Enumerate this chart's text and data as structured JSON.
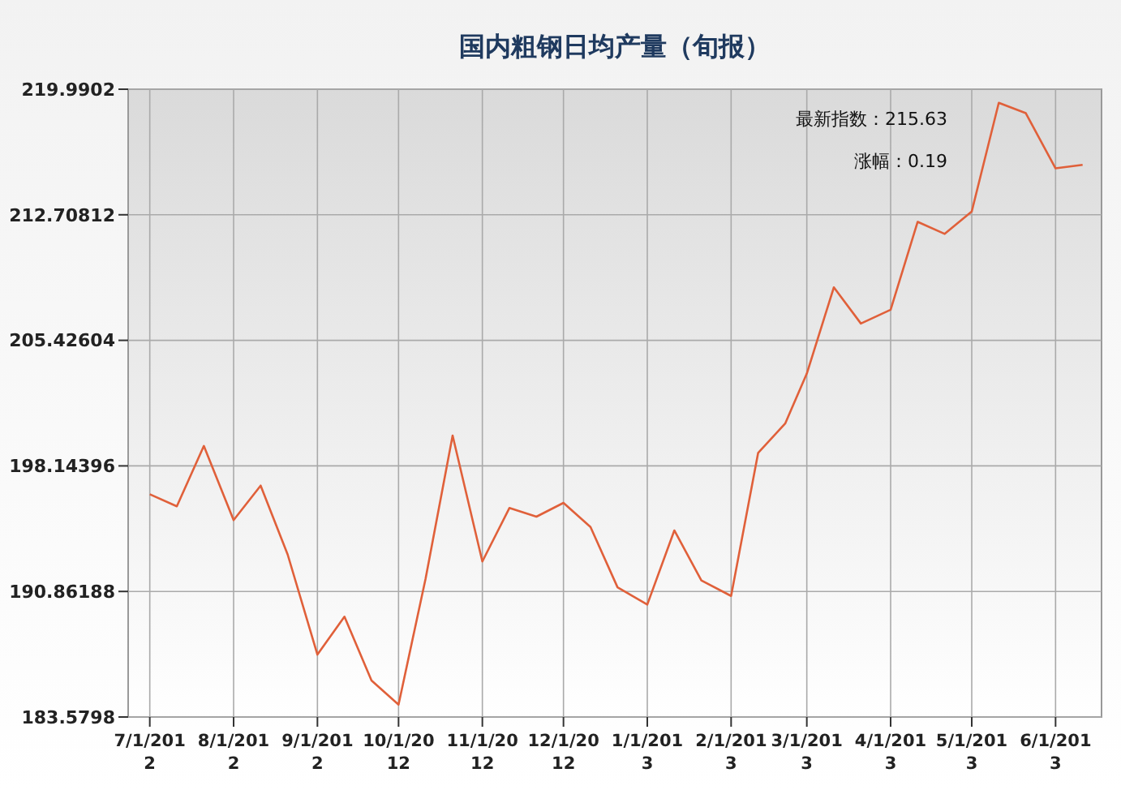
{
  "chart_data": {
    "type": "line",
    "title": "国内粗钢日均产量（旬报）",
    "x": [
      "2012-07-01",
      "2012-07-11",
      "2012-07-21",
      "2012-08-01",
      "2012-08-11",
      "2012-08-21",
      "2012-09-01",
      "2012-09-11",
      "2012-09-21",
      "2012-10-01",
      "2012-10-11",
      "2012-10-21",
      "2012-11-01",
      "2012-11-11",
      "2012-11-21",
      "2012-12-01",
      "2012-12-11",
      "2012-12-21",
      "2013-01-01",
      "2013-01-11",
      "2013-01-21",
      "2013-02-01",
      "2013-02-11",
      "2013-02-21",
      "2013-03-01",
      "2013-03-11",
      "2013-03-21",
      "2013-04-01",
      "2013-04-11",
      "2013-04-21",
      "2013-05-01",
      "2013-05-11",
      "2013-05-21",
      "2013-06-01",
      "2013-06-11"
    ],
    "series": [
      {
        "color": "#e0603a",
        "values": [
          196.5,
          195.8,
          199.3,
          195.0,
          197.0,
          193.0,
          187.2,
          189.4,
          185.7,
          184.3,
          191.6,
          199.9,
          192.6,
          195.7,
          195.2,
          196.0,
          194.6,
          191.1,
          190.1,
          194.4,
          191.5,
          190.6,
          198.9,
          200.6,
          203.5,
          208.5,
          206.4,
          207.2,
          212.3,
          211.6,
          212.9,
          219.2,
          218.6,
          215.4,
          215.6
        ]
      }
    ],
    "xlim": [
      "2012-06-23",
      "2013-06-18"
    ],
    "xticks": [
      {
        "value": "2012-07-01",
        "label": "7/1/2012"
      },
      {
        "value": "2012-08-01",
        "label": "8/1/2012"
      },
      {
        "value": "2012-09-01",
        "label": "9/1/2012"
      },
      {
        "value": "2012-10-01",
        "label": "10/1/2012"
      },
      {
        "value": "2012-11-01",
        "label": "11/1/2012"
      },
      {
        "value": "2012-12-01",
        "label": "12/1/2012"
      },
      {
        "value": "2013-01-01",
        "label": "1/1/2013"
      },
      {
        "value": "2013-02-01",
        "label": "2/1/2013"
      },
      {
        "value": "2013-03-01",
        "label": "3/1/2013"
      },
      {
        "value": "2013-04-01",
        "label": "4/1/2013"
      },
      {
        "value": "2013-05-01",
        "label": "5/1/2013"
      },
      {
        "value": "2013-06-01",
        "label": "6/1/2013"
      }
    ],
    "ylim": [
      183.5798,
      219.9902
    ],
    "yticks": [
      183.5798,
      190.86188,
      198.14396,
      205.42604,
      212.70812,
      219.9902
    ],
    "grid": true,
    "marker": "none",
    "line_style": "solid",
    "annotations": [
      "最新指数：215.63",
      "涨幅：0.19"
    ]
  }
}
